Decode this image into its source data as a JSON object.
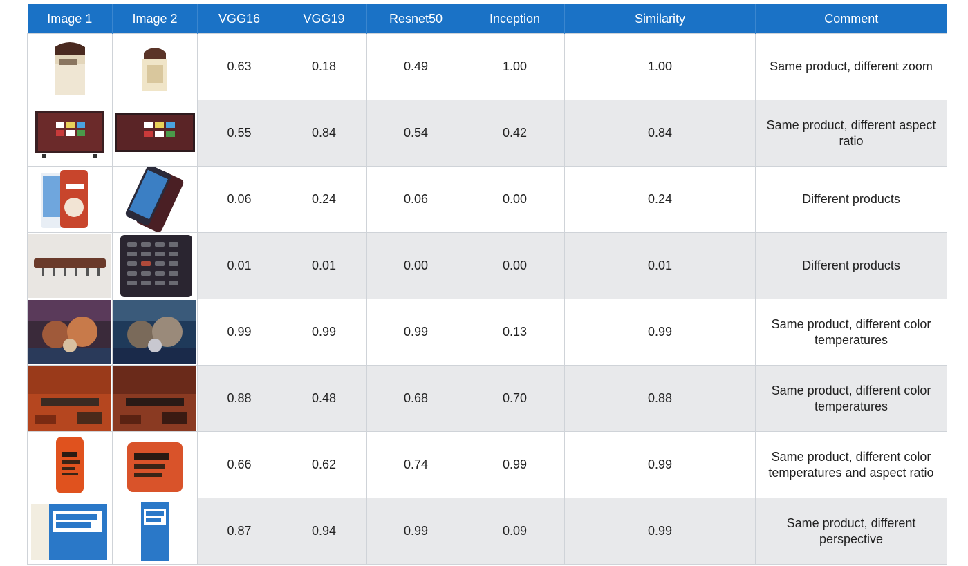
{
  "header": [
    "Image 1",
    "Image 2",
    "VGG16",
    "VGG19",
    "Resnet50",
    "Inception",
    "Similarity",
    "Comment"
  ],
  "rows": [
    {
      "img1": "cream-jar-icon",
      "img2": "cream-jar-icon",
      "vgg16": "0.63",
      "vgg19": "0.18",
      "resnet50": "0.49",
      "inception": "1.00",
      "similarity": "1.00",
      "comment": "Same product, different zoom"
    },
    {
      "img1": "tv-icon",
      "img2": "tv-icon",
      "vgg16": "0.55",
      "vgg19": "0.84",
      "resnet50": "0.54",
      "inception": "0.42",
      "similarity": "0.84",
      "comment": "Same product, different aspect ratio"
    },
    {
      "img1": "phone-case-icon",
      "img2": "phone-icon",
      "vgg16": "0.06",
      "vgg19": "0.24",
      "resnet50": "0.06",
      "inception": "0.00",
      "similarity": "0.24",
      "comment": "Different products"
    },
    {
      "img1": "power-strip-icon",
      "img2": "remote-icon",
      "vgg16": "0.01",
      "vgg19": "0.01",
      "resnet50": "0.00",
      "inception": "0.00",
      "similarity": "0.01",
      "comment": "Different products"
    },
    {
      "img1": "poster-icon",
      "img2": "poster-icon",
      "vgg16": "0.99",
      "vgg19": "0.99",
      "resnet50": "0.99",
      "inception": "0.13",
      "similarity": "0.99",
      "comment": "Same product, different color temperatures"
    },
    {
      "img1": "album-cover-icon",
      "img2": "album-cover-icon",
      "vgg16": "0.88",
      "vgg19": "0.48",
      "resnet50": "0.68",
      "inception": "0.70",
      "similarity": "0.88",
      "comment": "Same product, different color temperatures"
    },
    {
      "img1": "polish-bottle-icon",
      "img2": "polish-bottle-icon",
      "vgg16": "0.66",
      "vgg19": "0.62",
      "resnet50": "0.74",
      "inception": "0.99",
      "similarity": "0.99",
      "comment": "Same product, different color temperatures and aspect ratio"
    },
    {
      "img1": "eye-drops-box-icon",
      "img2": "eye-drops-box-icon",
      "vgg16": "0.87",
      "vgg19": "0.94",
      "resnet50": "0.99",
      "inception": "0.09",
      "similarity": "0.99",
      "comment": "Same product, different perspective"
    }
  ]
}
